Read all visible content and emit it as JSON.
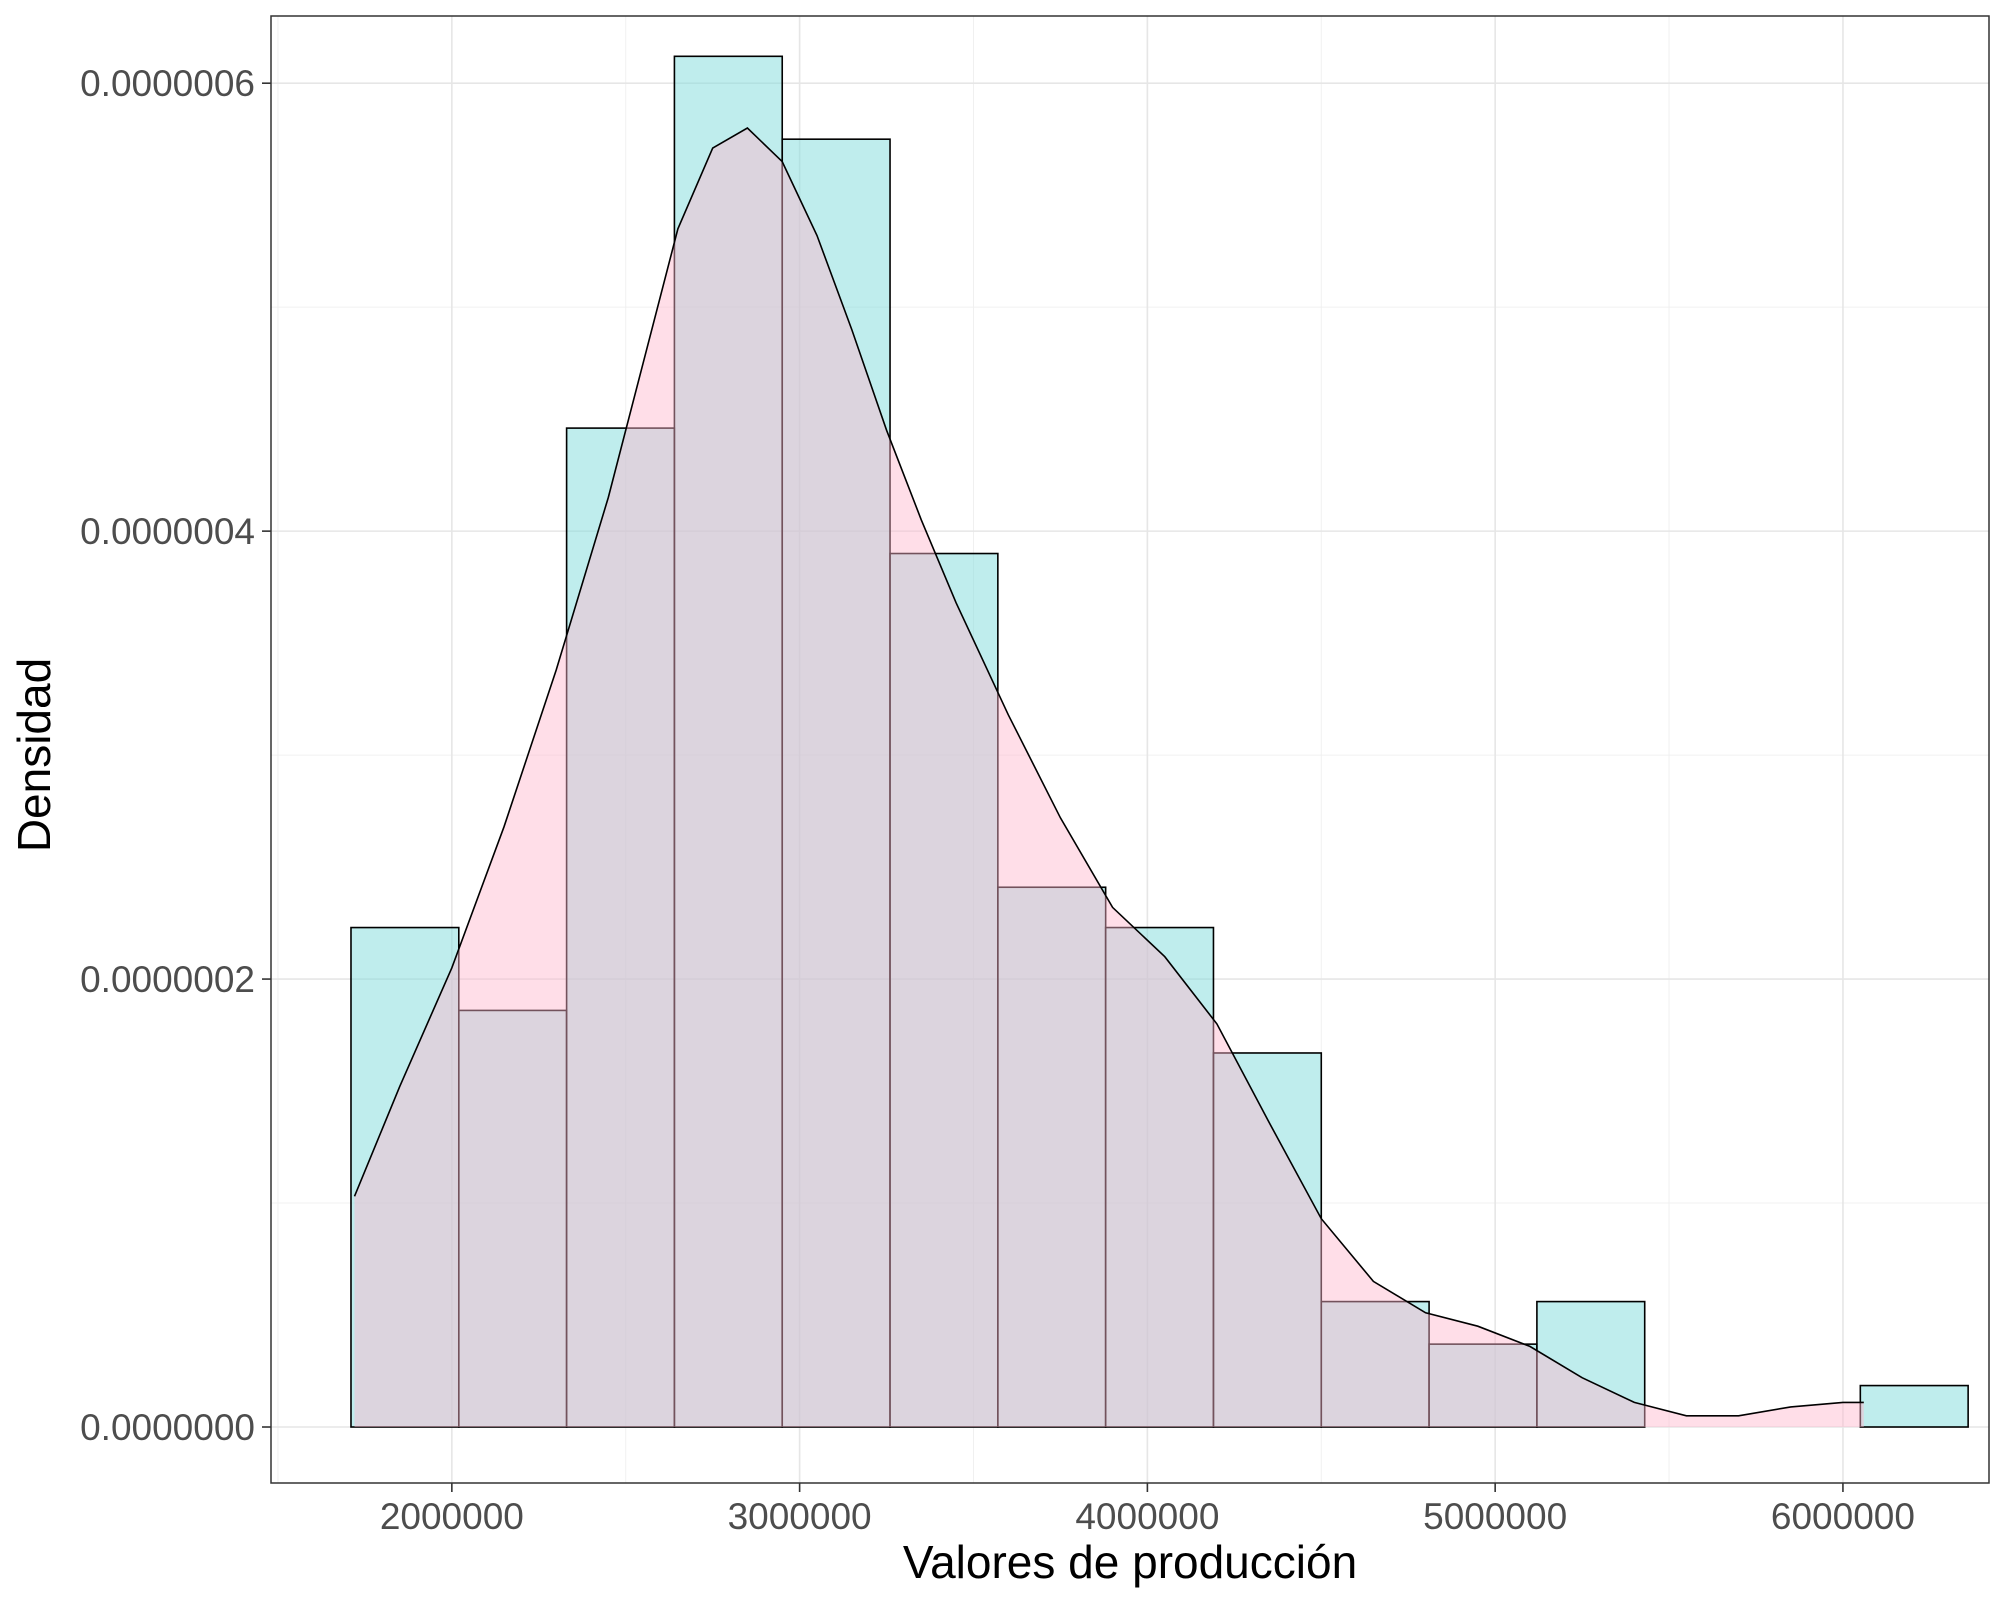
{
  "chart_data": {
    "type": "bar",
    "xlabel": "Valores de producción",
    "ylabel": "Densidad",
    "xlim": [
      1480000,
      6420000
    ],
    "ylim": [
      -2.5e-08,
      6.3e-07
    ],
    "x_ticks": [
      {
        "value": 2000000,
        "label": "2000000"
      },
      {
        "value": 3000000,
        "label": "3000000"
      },
      {
        "value": 4000000,
        "label": "4000000"
      },
      {
        "value": 5000000,
        "label": "5000000"
      },
      {
        "value": 6000000,
        "label": "6000000"
      }
    ],
    "y_ticks": [
      {
        "value": 0,
        "label": "0.0000000"
      },
      {
        "value": 2e-07,
        "label": "0.0000002"
      },
      {
        "value": 4e-07,
        "label": "0.0000004"
      },
      {
        "value": 6e-07,
        "label": "0.0000006"
      }
    ],
    "grid": true,
    "series": [
      {
        "kind": "histogram",
        "fill": "#7fdcdc",
        "bins": [
          {
            "x0": 1710000,
            "x1": 2020000,
            "value": 2.23e-07
          },
          {
            "x0": 2020000,
            "x1": 2330000,
            "value": 1.86e-07
          },
          {
            "x0": 2330000,
            "x1": 2640000,
            "value": 4.46e-07
          },
          {
            "x0": 2640000,
            "x1": 2950000,
            "value": 6.12e-07
          },
          {
            "x0": 2950000,
            "x1": 3260000,
            "value": 5.75e-07
          },
          {
            "x0": 3260000,
            "x1": 3570000,
            "value": 3.9e-07
          },
          {
            "x0": 3570000,
            "x1": 3880000,
            "value": 2.41e-07
          },
          {
            "x0": 3880000,
            "x1": 4190000,
            "value": 2.23e-07
          },
          {
            "x0": 4190000,
            "x1": 4500000,
            "value": 1.67e-07
          },
          {
            "x0": 4500000,
            "x1": 4810000,
            "value": 5.6e-08
          },
          {
            "x0": 4810000,
            "x1": 5120000,
            "value": 3.7e-08
          },
          {
            "x0": 5120000,
            "x1": 5430000,
            "value": 5.6e-08
          },
          {
            "x0": 5430000,
            "x1": 5740000,
            "value": 0
          },
          {
            "x0": 5740000,
            "x1": 6050000,
            "value": 0
          },
          {
            "x0": 6050000,
            "x1": 6360000,
            "value": 1.85e-08
          }
        ]
      },
      {
        "kind": "density",
        "fill": "#ffb6cd",
        "x": [
          1720000,
          1850000,
          2000000,
          2150000,
          2300000,
          2450000,
          2550000,
          2650000,
          2750000,
          2850000,
          2950000,
          3050000,
          3150000,
          3250000,
          3350000,
          3450000,
          3600000,
          3750000,
          3900000,
          4050000,
          4200000,
          4350000,
          4500000,
          4650000,
          4800000,
          4950000,
          5100000,
          5250000,
          5400000,
          5550000,
          5700000,
          5850000,
          6000000,
          6060000
        ],
        "y": [
          1.03e-07,
          1.52e-07,
          2.05e-07,
          2.68e-07,
          3.38e-07,
          4.15e-07,
          4.75e-07,
          5.35e-07,
          5.71e-07,
          5.8e-07,
          5.65e-07,
          5.32e-07,
          4.9e-07,
          4.45e-07,
          4.05e-07,
          3.68e-07,
          3.18e-07,
          2.72e-07,
          2.32e-07,
          2.1e-07,
          1.8e-07,
          1.36e-07,
          9.3e-08,
          6.5e-08,
          5.1e-08,
          4.5e-08,
          3.6e-08,
          2.2e-08,
          1.1e-08,
          5e-09,
          5e-09,
          9e-09,
          1.1e-08,
          1.1e-08
        ]
      }
    ]
  }
}
